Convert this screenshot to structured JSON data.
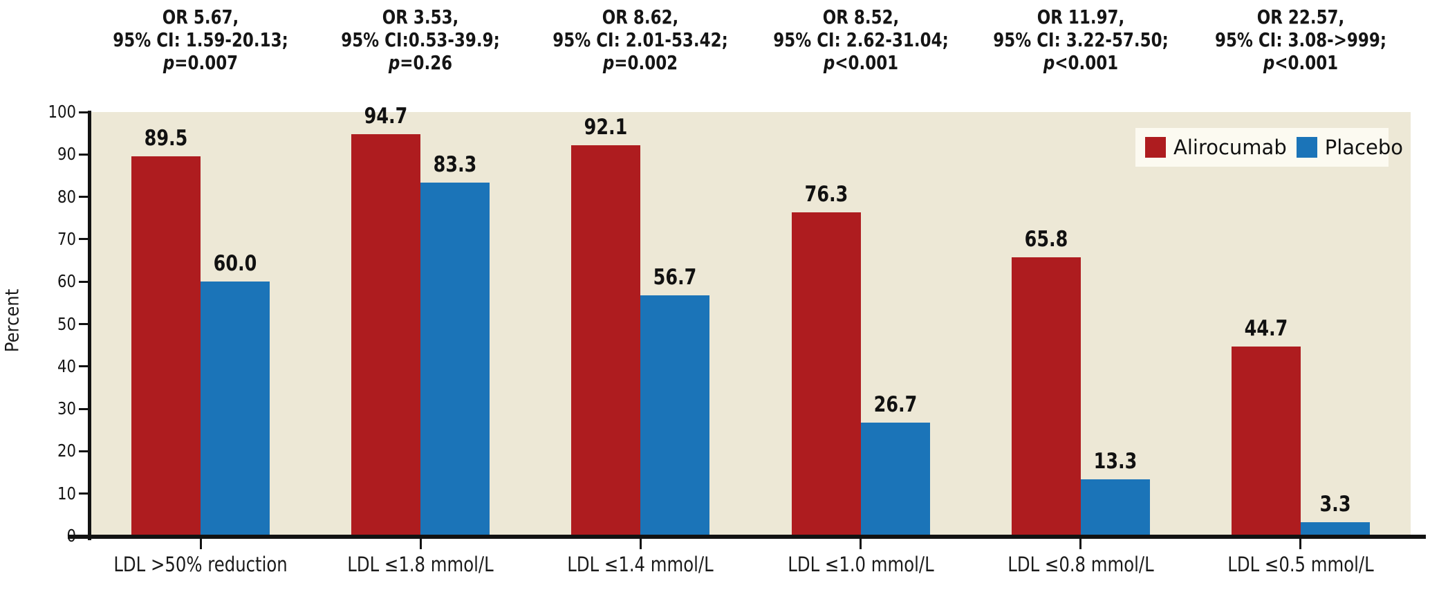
{
  "figure": {
    "ylabel": "Percent"
  },
  "annotations": [
    {
      "or_line": "OR 5.67,",
      "ci_line": "95% CI: 1.59-20.13;",
      "p_prefix": "p",
      "p_rest": "=0.007"
    },
    {
      "or_line": "OR 3.53,",
      "ci_line": "95% CI:0.53-39.9;",
      "p_prefix": "p",
      "p_rest": "=0.26"
    },
    {
      "or_line": "OR 8.62,",
      "ci_line": "95% CI: 2.01-53.42;",
      "p_prefix": "p",
      "p_rest": "=0.002"
    },
    {
      "or_line": "OR 8.52,",
      "ci_line": "95% CI: 2.62-31.04;",
      "p_prefix": "p",
      "p_rest": "<0.001"
    },
    {
      "or_line": "OR 11.97,",
      "ci_line": "95% CI: 3.22-57.50;",
      "p_prefix": "p",
      "p_rest": "<0.001"
    },
    {
      "or_line": "OR 22.57,",
      "ci_line": "95% CI: 3.08->999;",
      "p_prefix": "p",
      "p_rest": "<0.001"
    }
  ],
  "chart_data": {
    "type": "bar",
    "title": "",
    "xlabel": "",
    "ylabel": "Percent",
    "ylim": [
      0,
      100
    ],
    "yticks": [
      0,
      10,
      20,
      30,
      40,
      50,
      60,
      70,
      80,
      90,
      100
    ],
    "grid": false,
    "legend_position": "top-right",
    "categories": [
      "LDL >50% reduction",
      "LDL ≤1.8 mmol/L",
      "LDL ≤1.4 mmol/L",
      "LDL ≤1.0 mmol/L",
      "LDL ≤0.8 mmol/L",
      "LDL ≤0.5 mmol/L"
    ],
    "series": [
      {
        "name": "Alirocumab",
        "color": "#AE1C1F",
        "values": [
          89.5,
          94.7,
          92.1,
          76.3,
          65.8,
          44.7
        ]
      },
      {
        "name": "Placebo",
        "color": "#1B74B8",
        "values": [
          60.0,
          83.3,
          56.7,
          26.7,
          13.3,
          3.3
        ]
      }
    ],
    "group_annotations": [
      "OR 5.67, 95% CI: 1.59-20.13; p=0.007",
      "OR 3.53, 95% CI:0.53-39.9; p=0.26",
      "OR 8.62, 95% CI: 2.01-53.42; p=0.002",
      "OR 8.52, 95% CI: 2.62-31.04; p<0.001",
      "OR 11.97, 95% CI: 3.22-57.50; p<0.001",
      "OR 22.57, 95% CI: 3.08->999; p<0.001"
    ],
    "colors": {
      "plot_background": "#EDE8D6",
      "legend_background": "#FCFAF1",
      "alirocumab": "#AE1C1F",
      "placebo": "#1B74B8",
      "axis": "#121212"
    }
  }
}
